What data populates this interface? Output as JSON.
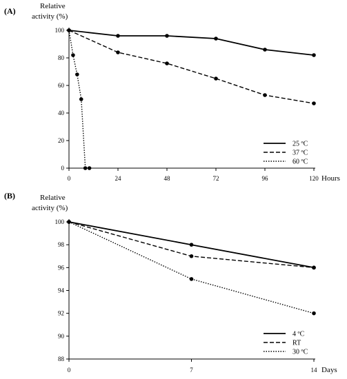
{
  "chart_data": [
    {
      "type": "line",
      "panel_label": "(A)",
      "ylabel_line1": "Relative",
      "ylabel_line2": "activity (%)",
      "xlabel": "Hours",
      "xlim": [
        0,
        120
      ],
      "ylim": [
        0,
        100
      ],
      "xticks": [
        0,
        24,
        48,
        72,
        96,
        120
      ],
      "yticks": [
        0,
        20,
        40,
        60,
        80,
        100
      ],
      "grid": false,
      "legend_position": "bottom-right",
      "series": [
        {
          "name": "25 ºC",
          "style": "solid",
          "x": [
            0,
            24,
            48,
            72,
            96,
            120
          ],
          "y": [
            100,
            96,
            96,
            94,
            86,
            82
          ]
        },
        {
          "name": "37 ºC",
          "style": "dashed",
          "x": [
            0,
            24,
            48,
            72,
            96,
            120
          ],
          "y": [
            100,
            84,
            76,
            65,
            53,
            47
          ]
        },
        {
          "name": "60 ºC",
          "style": "dotted",
          "x": [
            0,
            2,
            4,
            6,
            8,
            10
          ],
          "y": [
            100,
            82,
            68,
            50,
            0,
            0
          ]
        }
      ]
    },
    {
      "type": "line",
      "panel_label": "(B)",
      "ylabel_line1": "Relative",
      "ylabel_line2": "activity (%)",
      "xlabel": "Days",
      "xlim": [
        0,
        14
      ],
      "ylim": [
        88,
        100
      ],
      "xticks": [
        0,
        7,
        14
      ],
      "yticks": [
        88,
        90,
        92,
        94,
        96,
        98,
        100
      ],
      "grid": false,
      "legend_position": "bottom-right",
      "series": [
        {
          "name": "4 ºC",
          "style": "solid",
          "x": [
            0,
            7,
            14
          ],
          "y": [
            100,
            98,
            96
          ]
        },
        {
          "name": "RT",
          "style": "dashed",
          "x": [
            0,
            7,
            14
          ],
          "y": [
            100,
            97,
            96
          ]
        },
        {
          "name": "30 ºC",
          "style": "dotted",
          "x": [
            0,
            7,
            14
          ],
          "y": [
            100,
            95,
            92
          ]
        }
      ]
    }
  ]
}
